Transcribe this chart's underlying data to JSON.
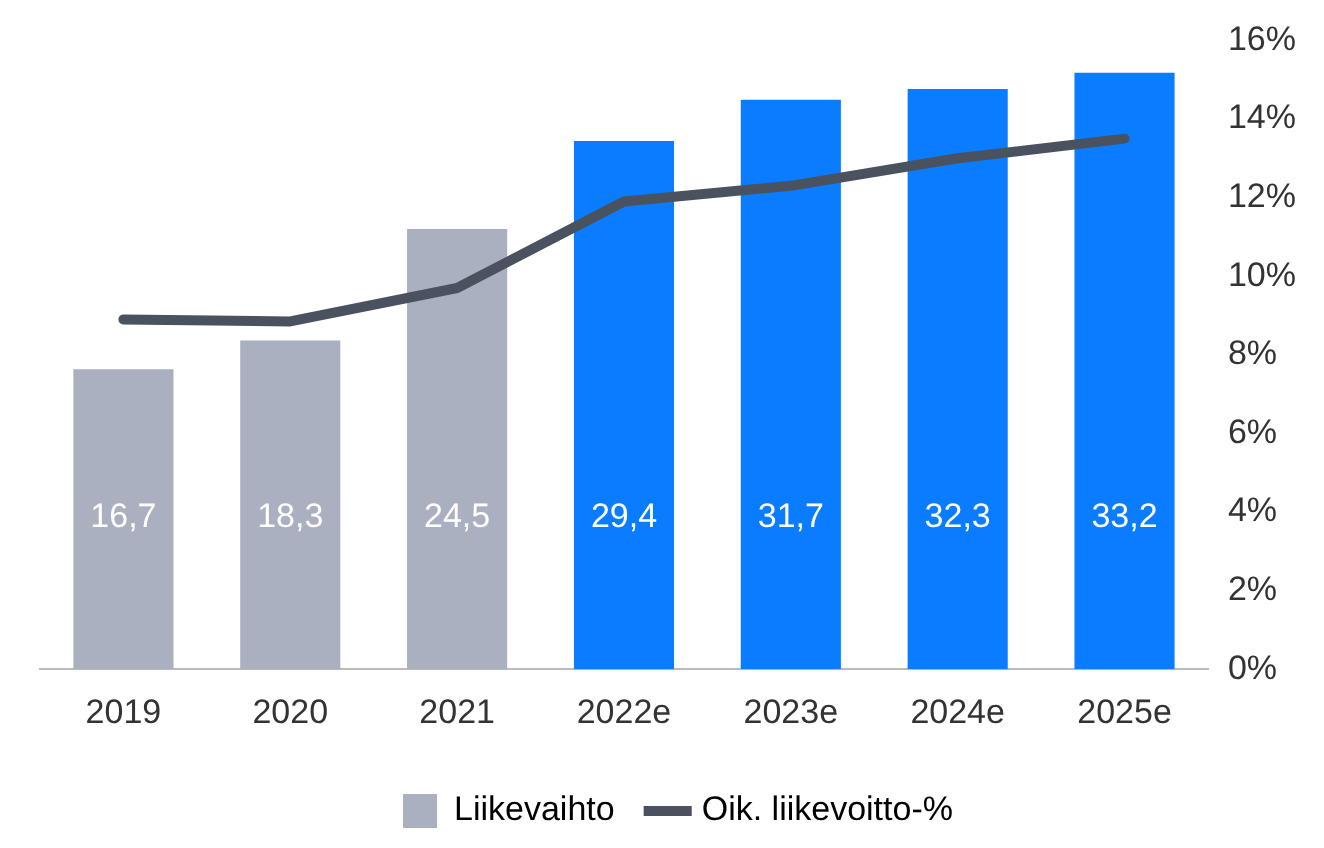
{
  "chart_data": {
    "type": "bar",
    "categories": [
      "2019",
      "2020",
      "2021",
      "2022e",
      "2023e",
      "2024e",
      "2025e"
    ],
    "series": [
      {
        "name": "Liikevaihto",
        "color": "#aab0c0",
        "colors": [
          "#aab0c0",
          "#aab0c0",
          "#aab0c0",
          "#0a7cff",
          "#0a7cff",
          "#0a7cff",
          "#0a7cff"
        ],
        "values": [
          16.7,
          18.3,
          24.5,
          29.4,
          31.7,
          32.3,
          33.2
        ],
        "value_labels": [
          "16,7",
          "18,3",
          "24,5",
          "29,4",
          "31,7",
          "32,3",
          "33,2"
        ]
      },
      {
        "name": "Oik. liikevoitto-%",
        "type": "line",
        "axis": "y2",
        "color": "#4a5260",
        "values": [
          8.9,
          8.85,
          9.7,
          11.9,
          12.3,
          13.0,
          13.5
        ]
      }
    ],
    "y2lim": [
      0,
      16
    ],
    "y2ticks": [
      {
        "value": 0,
        "label": "0%"
      },
      {
        "value": 2,
        "label": "2%"
      },
      {
        "value": 4,
        "label": "4%"
      },
      {
        "value": 6,
        "label": "6%"
      },
      {
        "value": 8,
        "label": "8%"
      },
      {
        "value": 10,
        "label": "10%"
      },
      {
        "value": 12,
        "label": "12%"
      },
      {
        "value": 14,
        "label": "14%"
      },
      {
        "value": 16,
        "label": "16%"
      }
    ],
    "grid": false,
    "legend": "bottom",
    "marker": "none",
    "line_style": "solid"
  }
}
